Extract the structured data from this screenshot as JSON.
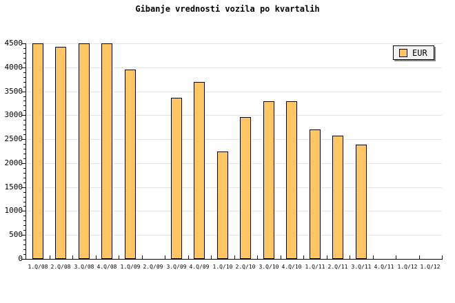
{
  "chart_data": {
    "type": "bar",
    "title": "Gibanje vrednosti vozila po kvartalih",
    "categories": [
      "1.Q/08",
      "2.Q/08",
      "3.Q/08",
      "4.Q/08",
      "1.Q/09",
      "2.Q/09",
      "3.Q/09",
      "4.Q/09",
      "1.Q/10",
      "2.Q/10",
      "3.Q/10",
      "4.Q/10",
      "1.Q/11",
      "2.Q/11",
      "3.Q/11",
      "4.Q/11",
      "1.Q/12",
      "1.Q/12"
    ],
    "series": [
      {
        "name": "EUR",
        "values": [
          4500,
          4430,
          4500,
          4500,
          3950,
          null,
          3370,
          3700,
          2250,
          2960,
          3290,
          3290,
          2700,
          2580,
          2390,
          null,
          null,
          null
        ]
      }
    ],
    "xlabel": "",
    "ylabel": "",
    "ylim": [
      0,
      4500
    ],
    "y_major_step": 500,
    "y_minor_step": 100,
    "y_tick_labels": [
      "0",
      "500",
      "1000",
      "1500",
      "2000",
      "2500",
      "3000",
      "3500",
      "4000",
      "4500"
    ],
    "grid": true,
    "legend_position": "top-right"
  },
  "legend": {
    "label": "EUR"
  },
  "colors": {
    "background": "#FFFFFF",
    "bar_fill": "#FDC663",
    "bar_border": "#000000",
    "gridline": "#E4E4E4",
    "axis": "#000000",
    "text": "#000000",
    "legend_bg": "#F2F2F2",
    "legend_shadow": "#888888"
  }
}
